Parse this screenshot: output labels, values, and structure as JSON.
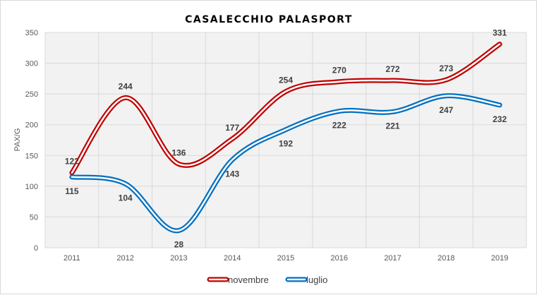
{
  "chart_data": {
    "type": "line",
    "title": "CASALECCHIO PALASPORT",
    "xlabel": "",
    "ylabel": "PAX/G",
    "categories": [
      "2011",
      "2012",
      "2013",
      "2014",
      "2015",
      "2016",
      "2017",
      "2018",
      "2019"
    ],
    "ylim": [
      0,
      350
    ],
    "yticks": [
      "0",
      "50",
      "100",
      "150",
      "200",
      "250",
      "300",
      "350"
    ],
    "grid": true,
    "legend_position": "bottom",
    "series": [
      {
        "name": "novembre",
        "values": [
          122,
          244,
          136,
          177,
          254,
          270,
          272,
          273,
          331
        ],
        "labels": [
          "122",
          "244",
          "136",
          "177",
          "254",
          "270",
          "272",
          "273",
          "331"
        ],
        "color": "#c00000",
        "label_position": "above"
      },
      {
        "name": "luglio",
        "values": [
          115,
          104,
          28,
          143,
          192,
          222,
          221,
          247,
          232
        ],
        "labels": [
          "115",
          "104",
          "28",
          "143",
          "192",
          "222",
          "221",
          "247",
          "232"
        ],
        "color": "#0070c0",
        "label_position": "below"
      }
    ]
  }
}
